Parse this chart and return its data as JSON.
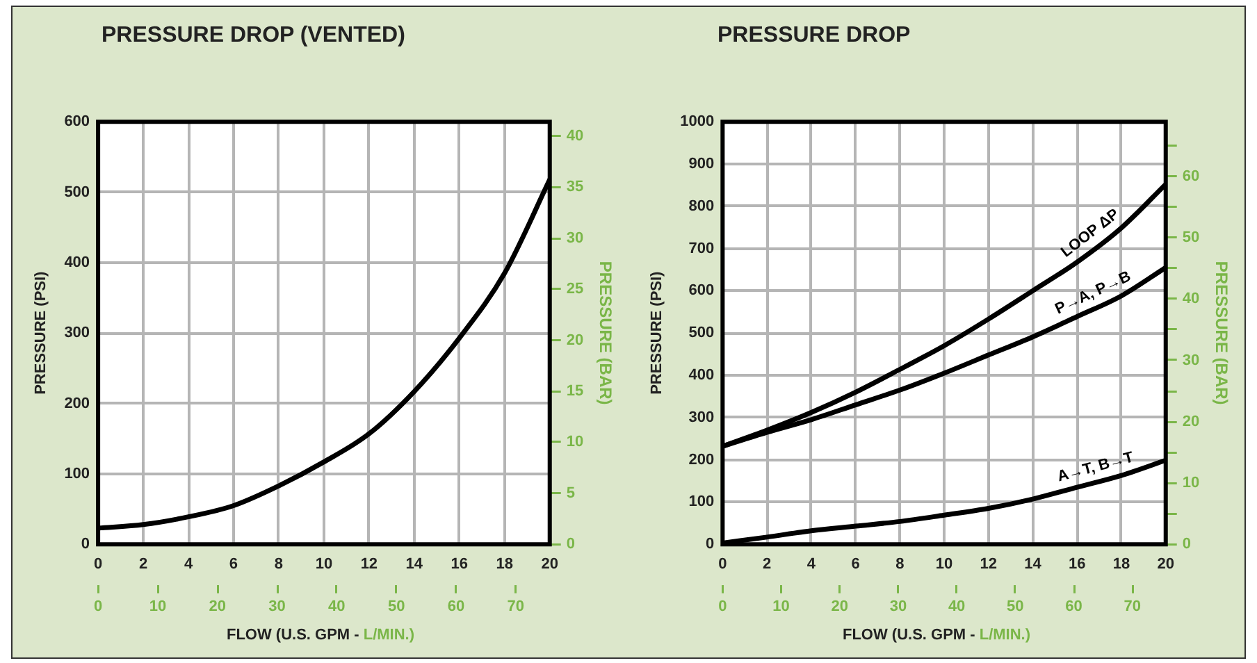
{
  "chart_data": [
    {
      "type": "line",
      "title": "PRESSURE DROP (VENTED)",
      "xlabel": "FLOW (U.S. GPM -",
      "x2label": "L/MIN.)",
      "ylabel": "PRESSURE (PSI)",
      "y2label": "PRESSURE (BAR)",
      "x": [
        0,
        2,
        4,
        6,
        8,
        10,
        12,
        14,
        16,
        18,
        20
      ],
      "series": [
        {
          "color": "#000000",
          "values": [
            23,
            28,
            39,
            55,
            83,
            117,
            157,
            217,
            293,
            385,
            518
          ]
        }
      ],
      "xlim": [
        0,
        20
      ],
      "xticks": [
        0,
        2,
        4,
        6,
        8,
        10,
        12,
        14,
        16,
        18,
        20
      ],
      "x2lim": [
        0,
        75.7
      ],
      "x2ticks": [
        0,
        10,
        20,
        30,
        40,
        50,
        60,
        70
      ],
      "ylim": [
        0,
        600
      ],
      "yticks": [
        0,
        100,
        200,
        300,
        400,
        500,
        600
      ],
      "y2lim": [
        0,
        41.4
      ],
      "y2ticks": [
        0,
        5,
        10,
        15,
        20,
        25,
        30,
        35,
        40
      ],
      "grid": true,
      "legend": false,
      "marker": "none",
      "line_style": "solid"
    },
    {
      "type": "line",
      "title": "PRESSURE DROP",
      "xlabel": "FLOW (U.S. GPM -",
      "x2label": "L/MIN.)",
      "ylabel": "PRESSURE (PSI)",
      "y2label": "PRESSURE (BAR)",
      "x": [
        0,
        2,
        4,
        6,
        8,
        10,
        12,
        14,
        16,
        18,
        20
      ],
      "series": [
        {
          "name": "LOOP ΔP",
          "color": "#000000",
          "values": [
            232,
            270,
            312,
            360,
            414,
            470,
            533,
            600,
            668,
            749,
            852
          ]
        },
        {
          "name": "P→A, P→B",
          "color": "#000000",
          "values": [
            232,
            265,
            295,
            330,
            365,
            405,
            448,
            491,
            539,
            588,
            655
          ]
        },
        {
          "name": "A→T, B→T",
          "color": "#000000",
          "values": [
            3,
            17,
            32,
            43,
            54,
            69,
            85,
            107,
            135,
            163,
            199
          ]
        }
      ],
      "xlim": [
        0,
        20
      ],
      "xticks": [
        0,
        2,
        4,
        6,
        8,
        10,
        12,
        14,
        16,
        18,
        20
      ],
      "x2lim": [
        0,
        75.7
      ],
      "x2ticks": [
        0,
        10,
        20,
        30,
        40,
        50,
        60,
        70
      ],
      "ylim": [
        0,
        1000
      ],
      "yticks": [
        0,
        100,
        200,
        300,
        400,
        500,
        600,
        700,
        800,
        900,
        1000
      ],
      "y2lim": [
        0,
        68.9
      ],
      "y2ticks": [
        0,
        {
          "value": 5,
          "label": null
        },
        10,
        {
          "value": 15,
          "label": null
        },
        20,
        {
          "value": 25,
          "label": null
        },
        30,
        {
          "value": 35,
          "label": null
        },
        40,
        {
          "value": 45,
          "label": null
        },
        50,
        {
          "value": 55,
          "label": null
        },
        60,
        {
          "value": 65,
          "label": null
        }
      ],
      "grid": true,
      "legend": false,
      "marker": "none",
      "line_style": "solid"
    }
  ]
}
